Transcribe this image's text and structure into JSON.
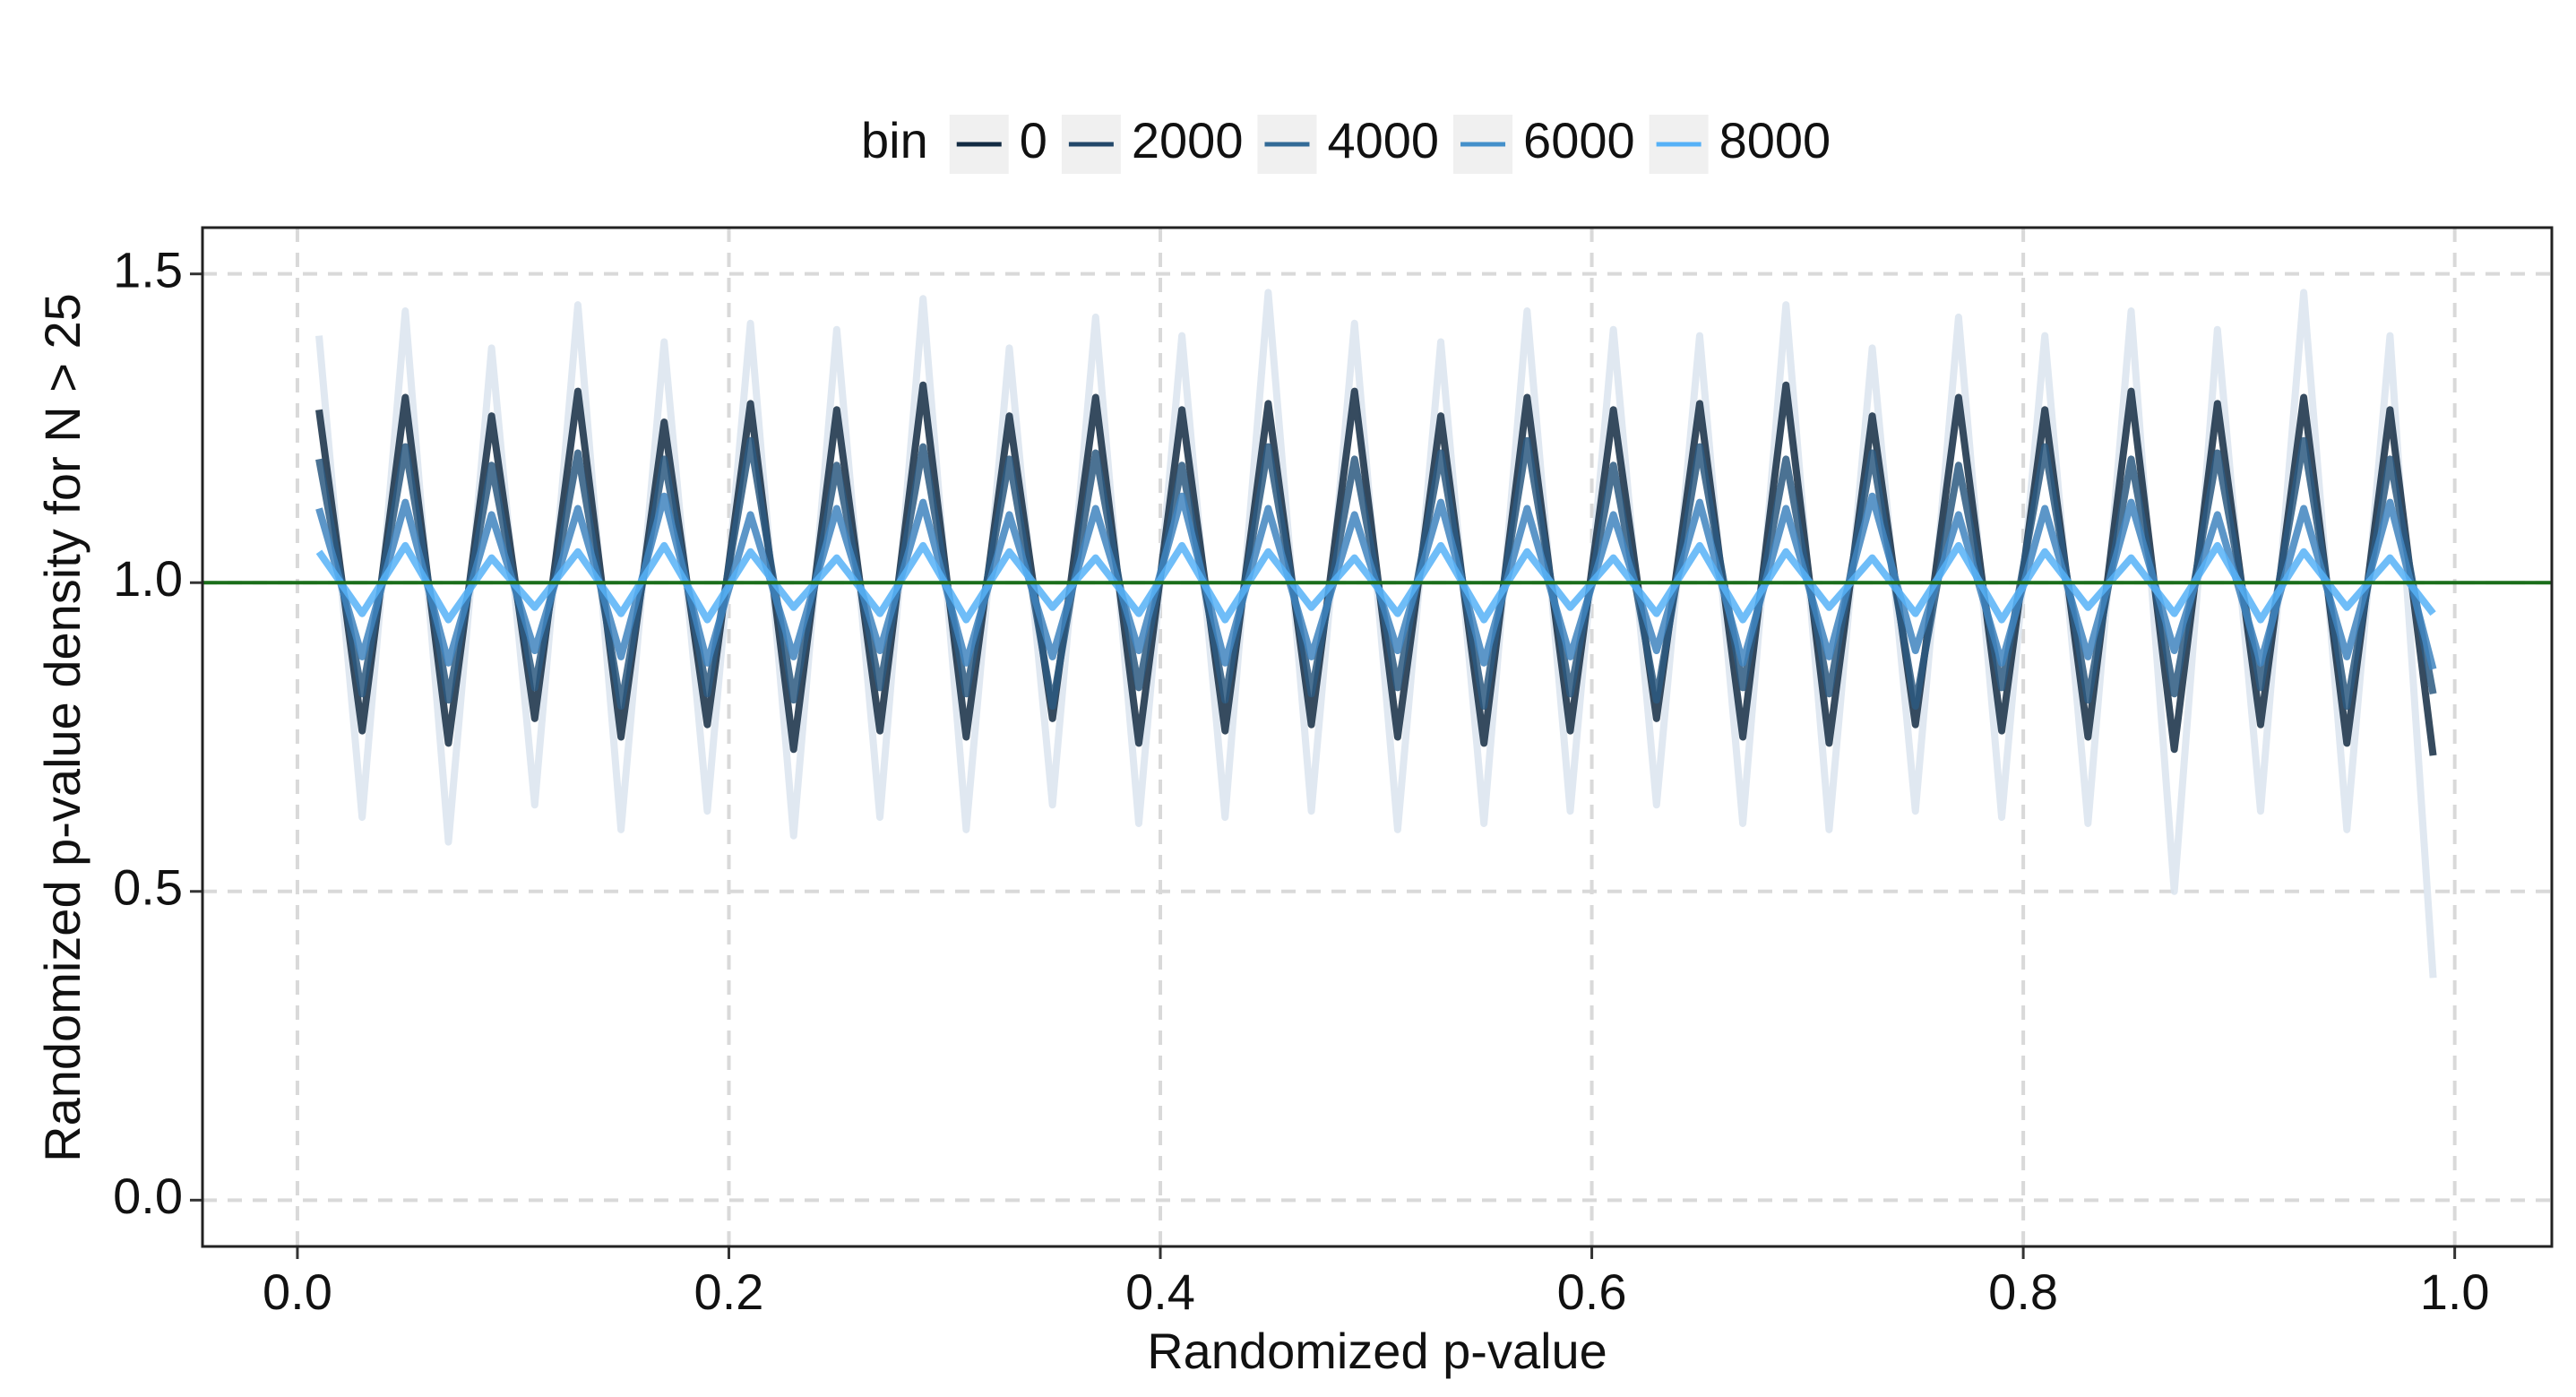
{
  "chart_data": {
    "type": "line",
    "xlabel": "Randomized p-value",
    "ylabel": "Randomized p-value density for N > 25",
    "xlim": [
      -0.044,
      1.045
    ],
    "ylim": [
      -0.075,
      1.575
    ],
    "xticks": [
      {
        "value": 0,
        "label": "0.0"
      },
      0.2,
      0.4,
      0.6,
      0.8,
      {
        "value": 1,
        "label": "1.0"
      }
    ],
    "yticks": [
      {
        "value": 0,
        "label": "0.0"
      },
      0.5,
      {
        "value": 1,
        "label": "1.0"
      },
      1.5
    ],
    "grid": true,
    "legend": {
      "title": "bin",
      "position": "top",
      "values": [
        0,
        2000,
        4000,
        6000,
        8000
      ],
      "colors": [
        "#132B43",
        "#23486A",
        "#336B97",
        "#4490CA",
        "#56B1F7"
      ]
    },
    "hline": {
      "value": 1,
      "color": "#1a6e1a"
    },
    "x": [
      0.01,
      0.03,
      0.05,
      0.07,
      0.09,
      0.11,
      0.13,
      0.15,
      0.17,
      0.19,
      0.21,
      0.23,
      0.25,
      0.27,
      0.29,
      0.31,
      0.33,
      0.35,
      0.37,
      0.39,
      0.41,
      0.43,
      0.45,
      0.47,
      0.49,
      0.51,
      0.53,
      0.55,
      0.57,
      0.59,
      0.61,
      0.63,
      0.65,
      0.67,
      0.69,
      0.71,
      0.73,
      0.75,
      0.77,
      0.79,
      0.81,
      0.83,
      0.85,
      0.87,
      0.89,
      0.91,
      0.93,
      0.95,
      0.97,
      0.99
    ],
    "series": [
      {
        "color": "#dbe4ee",
        "values": [
          1.4,
          0.62,
          1.44,
          0.58,
          1.38,
          0.64,
          1.45,
          0.6,
          1.39,
          0.63,
          1.42,
          0.59,
          1.41,
          0.62,
          1.46,
          0.6,
          1.38,
          0.64,
          1.43,
          0.61,
          1.4,
          0.62,
          1.47,
          0.63,
          1.42,
          0.6,
          1.39,
          0.61,
          1.44,
          0.63,
          1.41,
          0.64,
          1.4,
          0.61,
          1.45,
          0.6,
          1.38,
          0.63,
          1.43,
          0.62,
          1.4,
          0.61,
          1.44,
          0.5,
          1.41,
          0.63,
          1.47,
          0.6,
          1.4,
          0.36
        ]
      },
      {
        "color": "#132B43",
        "values": [
          1.28,
          0.76,
          1.3,
          0.74,
          1.27,
          0.78,
          1.31,
          0.75,
          1.26,
          0.77,
          1.29,
          0.73,
          1.28,
          0.76,
          1.32,
          0.75,
          1.27,
          0.78,
          1.3,
          0.74,
          1.28,
          0.76,
          1.29,
          0.77,
          1.31,
          0.75,
          1.27,
          0.74,
          1.3,
          0.76,
          1.28,
          0.78,
          1.29,
          0.75,
          1.32,
          0.74,
          1.27,
          0.77,
          1.3,
          0.76,
          1.28,
          0.75,
          1.31,
          0.73,
          1.29,
          0.77,
          1.3,
          0.74,
          1.28,
          0.72
        ]
      },
      {
        "color": "#2C5980",
        "values": [
          1.2,
          0.82,
          1.22,
          0.81,
          1.19,
          0.83,
          1.21,
          0.8,
          1.2,
          0.82,
          1.23,
          0.81,
          1.19,
          0.83,
          1.22,
          0.82,
          1.2,
          0.8,
          1.21,
          0.83,
          1.19,
          0.81,
          1.22,
          0.82,
          1.2,
          0.83,
          1.21,
          0.8,
          1.23,
          0.82,
          1.19,
          0.81,
          1.22,
          0.83,
          1.2,
          0.82,
          1.21,
          0.8,
          1.19,
          0.83,
          1.22,
          0.81,
          1.2,
          0.82,
          1.21,
          0.83,
          1.23,
          0.8,
          1.2,
          0.82
        ]
      },
      {
        "color": "#3F84BE",
        "values": [
          1.12,
          0.88,
          1.13,
          0.87,
          1.11,
          0.89,
          1.12,
          0.88,
          1.14,
          0.87,
          1.11,
          0.88,
          1.12,
          0.89,
          1.13,
          0.87,
          1.11,
          0.88,
          1.12,
          0.89,
          1.14,
          0.87,
          1.12,
          0.88,
          1.11,
          0.89,
          1.13,
          0.87,
          1.12,
          0.88,
          1.11,
          0.89,
          1.13,
          0.87,
          1.12,
          0.88,
          1.14,
          0.89,
          1.11,
          0.87,
          1.12,
          0.88,
          1.13,
          0.89,
          1.11,
          0.87,
          1.12,
          0.88,
          1.13,
          0.86
        ]
      },
      {
        "color": "#56B1F7",
        "values": [
          1.05,
          0.95,
          1.06,
          0.94,
          1.04,
          0.96,
          1.05,
          0.95,
          1.06,
          0.94,
          1.05,
          0.96,
          1.04,
          0.95,
          1.06,
          0.94,
          1.05,
          0.96,
          1.04,
          0.95,
          1.06,
          0.94,
          1.05,
          0.96,
          1.04,
          0.95,
          1.06,
          0.94,
          1.05,
          0.96,
          1.04,
          0.95,
          1.06,
          0.94,
          1.05,
          0.96,
          1.04,
          0.95,
          1.06,
          0.94,
          1.05,
          0.96,
          1.04,
          0.95,
          1.06,
          0.94,
          1.05,
          0.96,
          1.04,
          0.95
        ]
      }
    ]
  }
}
